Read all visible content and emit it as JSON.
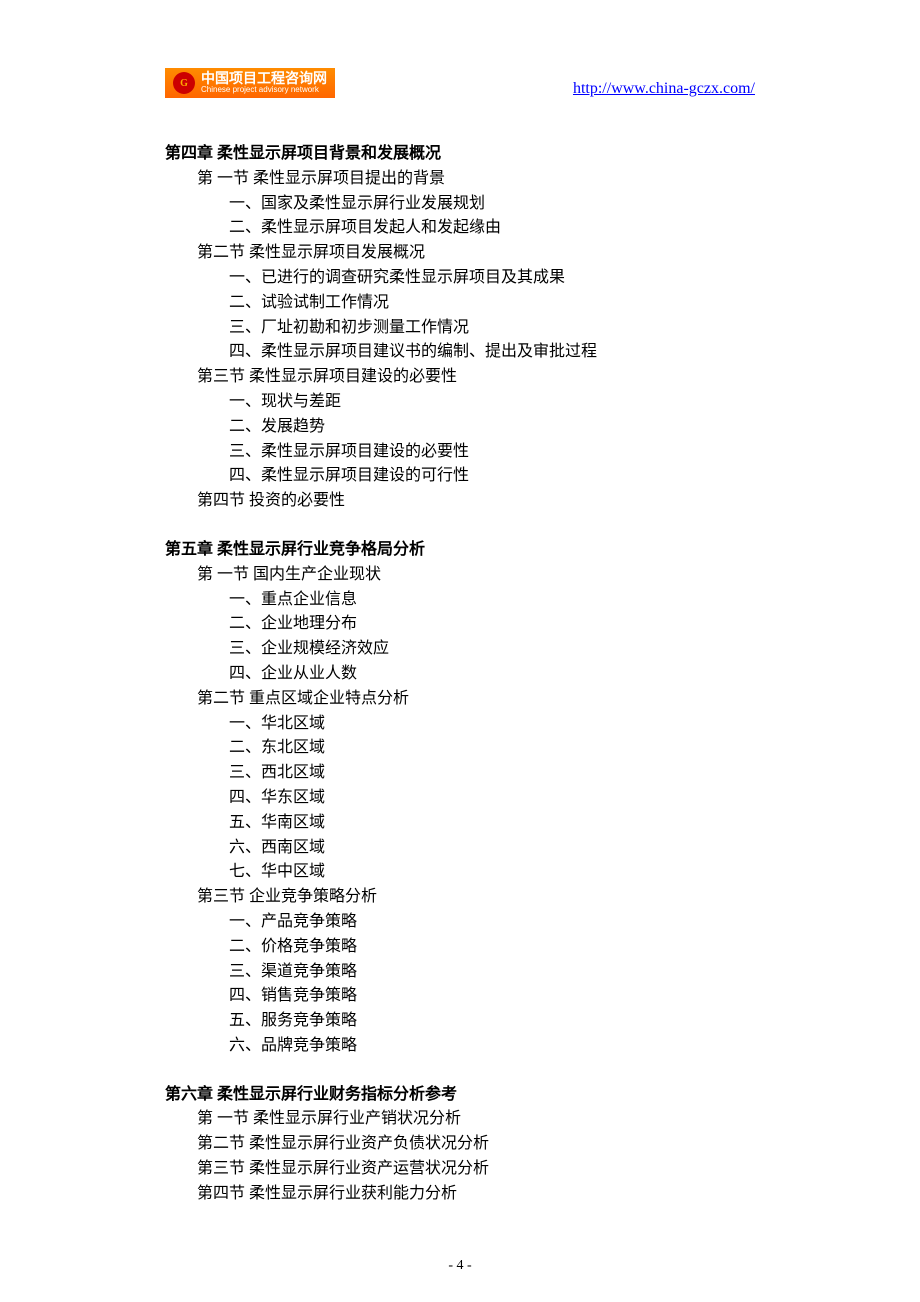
{
  "header": {
    "logo_cn": "中国项目工程咨询网",
    "logo_en": "Chinese project advisory network",
    "url": "http://www.china-gczx.com/"
  },
  "chapters": [
    {
      "title": "第四章 柔性显示屏项目背景和发展概况",
      "sections": [
        {
          "title": "第 一节 柔性显示屏项目提出的背景",
          "items": [
            "一、国家及柔性显示屏行业发展规划",
            "二、柔性显示屏项目发起人和发起缘由"
          ]
        },
        {
          "title": "第二节 柔性显示屏项目发展概况",
          "items": [
            "一、已进行的调查研究柔性显示屏项目及其成果",
            "二、试验试制工作情况",
            "三、厂址初勘和初步测量工作情况",
            "四、柔性显示屏项目建议书的编制、提出及审批过程"
          ]
        },
        {
          "title": "第三节 柔性显示屏项目建设的必要性",
          "items": [
            "一、现状与差距",
            "二、发展趋势",
            "三、柔性显示屏项目建设的必要性",
            "四、柔性显示屏项目建设的可行性"
          ]
        },
        {
          "title": "第四节  投资的必要性",
          "items": []
        }
      ]
    },
    {
      "title": "第五章 柔性显示屏行业竞争格局分析",
      "sections": [
        {
          "title": "第 一节  国内生产企业现状",
          "items": [
            "一、重点企业信息",
            "二、企业地理分布",
            "三、企业规模经济效应",
            "四、企业从业人数"
          ]
        },
        {
          "title": "第二节  重点区域企业特点分析",
          "items": [
            "一、华北区域",
            "二、东北区域",
            "三、西北区域",
            "四、华东区域",
            "五、华南区域",
            "六、西南区域",
            "七、华中区域"
          ]
        },
        {
          "title": "第三节  企业竞争策略分析",
          "items": [
            "一、产品竞争策略",
            "二、价格竞争策略",
            "三、渠道竞争策略",
            "四、销售竞争策略",
            "五、服务竞争策略",
            "六、品牌竞争策略"
          ]
        }
      ]
    },
    {
      "title": "第六章 柔性显示屏行业财务指标分析参考",
      "sections": [
        {
          "title": "第 一节 柔性显示屏行业产销状况分析",
          "items": []
        },
        {
          "title": "第二节 柔性显示屏行业资产负债状况分析",
          "items": []
        },
        {
          "title": "第三节 柔性显示屏行业资产运营状况分析",
          "items": []
        },
        {
          "title": "第四节 柔性显示屏行业获利能力分析",
          "items": []
        }
      ]
    }
  ],
  "page_number": "- 4 -",
  "colors": {
    "text": "#000000",
    "link": "#0000ff",
    "logo_bg_top": "#ff8c00",
    "logo_bg_bottom": "#ff6600",
    "logo_circle": "#cc0000",
    "background": "#ffffff"
  },
  "typography": {
    "body_fontsize": 16,
    "body_font": "SimSun",
    "line_height": 1.55,
    "url_font": "Times New Roman",
    "page_number_fontsize": 14
  }
}
